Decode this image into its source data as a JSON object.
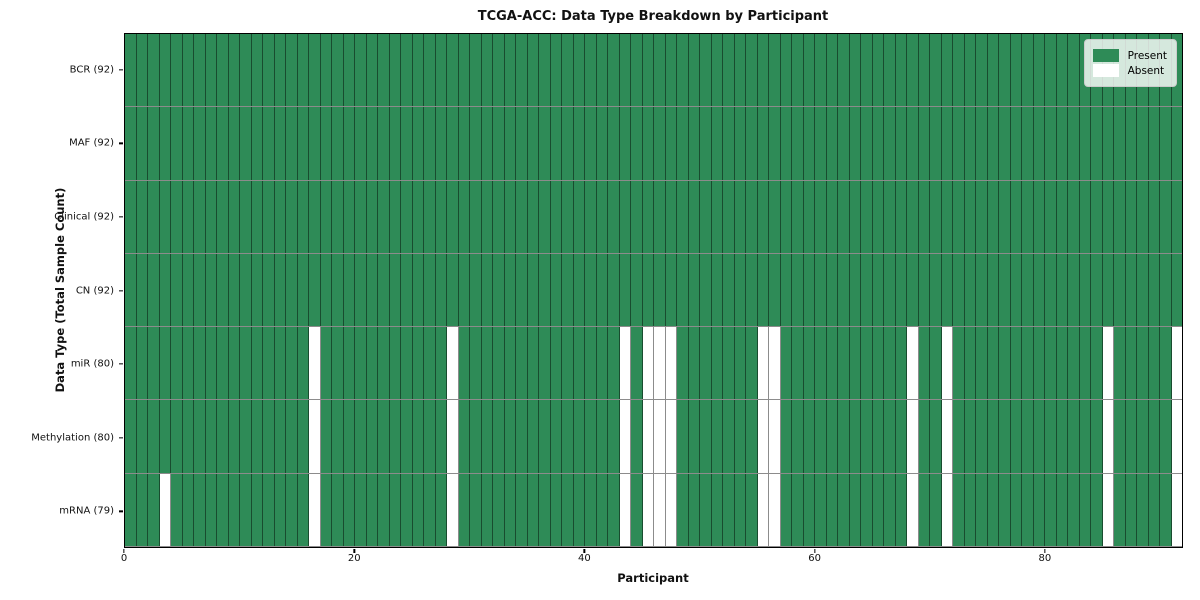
{
  "title": "TCGA-ACC: Data Type Breakdown by Participant",
  "xlabel": "Participant",
  "ylabel": "Data Type (Total Sample Count)",
  "colors": {
    "present": "#2e8b57",
    "absent": "#ffffff",
    "grid_line": "rgba(0,0,0,0.45)",
    "frame": "#000000",
    "legend_bg": "rgba(255,255,255,0.8)",
    "legend_border": "#cccccc"
  },
  "legend": {
    "entries": [
      {
        "label": "Present",
        "color": "#2e8b57"
      },
      {
        "label": "Absent",
        "color": "#ffffff"
      }
    ]
  },
  "chart_data": {
    "type": "heatmap",
    "title": "TCGA-ACC: Data Type Breakdown by Participant",
    "xlabel": "Participant",
    "ylabel": "Data Type (Total Sample Count)",
    "n_participants": 92,
    "x_ticks": [
      0,
      20,
      40,
      60,
      80
    ],
    "x_range": [
      0,
      92
    ],
    "grid": true,
    "legend_position": "upper right",
    "legend_entries": [
      "Present",
      "Absent"
    ],
    "value_encoding": {
      "present": 1,
      "absent": 0
    },
    "rows": [
      {
        "label": "BCR (92)",
        "data_type": "BCR",
        "present_count": 92,
        "absent_participants": []
      },
      {
        "label": "MAF (92)",
        "data_type": "MAF",
        "present_count": 92,
        "absent_participants": []
      },
      {
        "label": "Clinical (92)",
        "data_type": "Clinical",
        "present_count": 92,
        "absent_participants": []
      },
      {
        "label": "CN (92)",
        "data_type": "CN",
        "present_count": 92,
        "absent_participants": []
      },
      {
        "label": "miR (80)",
        "data_type": "miR",
        "present_count": 80,
        "absent_participants": [
          16,
          28,
          43,
          45,
          46,
          47,
          55,
          56,
          68,
          71,
          85,
          91
        ]
      },
      {
        "label": "Methylation (80)",
        "data_type": "Methylation",
        "present_count": 80,
        "absent_participants": [
          16,
          28,
          43,
          45,
          46,
          47,
          55,
          56,
          68,
          71,
          85,
          91
        ]
      },
      {
        "label": "mRNA (79)",
        "data_type": "mRNA",
        "present_count": 79,
        "absent_participants": [
          3,
          16,
          28,
          43,
          45,
          46,
          47,
          55,
          56,
          68,
          71,
          85,
          91
        ]
      }
    ]
  }
}
